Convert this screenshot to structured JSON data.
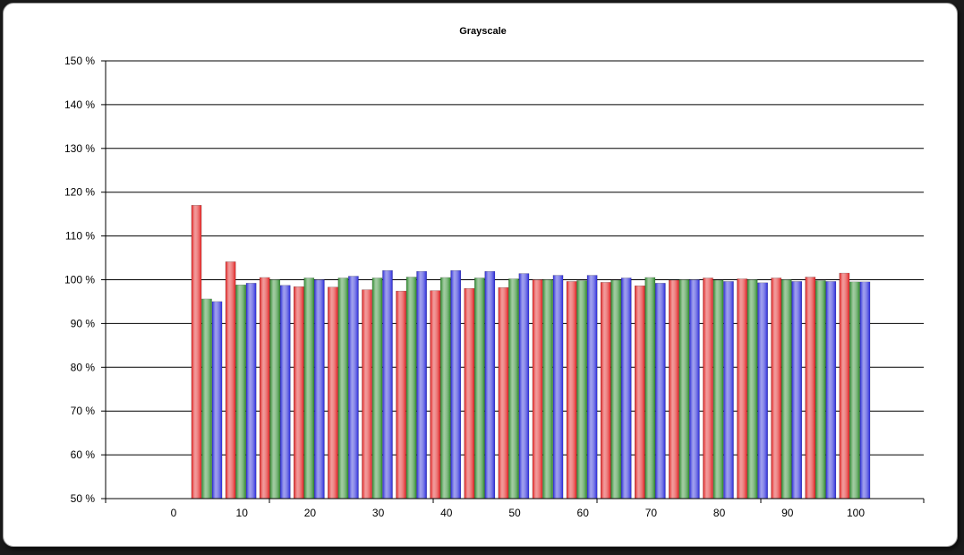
{
  "chart_data": {
    "type": "bar",
    "title": "Grayscale",
    "xlabel": "",
    "ylabel": "",
    "ylim": [
      50,
      150
    ],
    "y_ticks": [
      "50 %",
      "60 %",
      "70 %",
      "80 %",
      "90 %",
      "100 %",
      "110 %",
      "120 %",
      "130 %",
      "140 %",
      "150 %"
    ],
    "y_tick_values": [
      50,
      60,
      70,
      80,
      90,
      100,
      110,
      120,
      130,
      140,
      150
    ],
    "x_tick_labels": [
      "0",
      "10",
      "20",
      "30",
      "40",
      "50",
      "60",
      "70",
      "80",
      "90",
      "100"
    ],
    "grid": true,
    "legend": "none",
    "categories": [
      "0",
      "5",
      "10",
      "15",
      "20",
      "25",
      "30",
      "35",
      "40",
      "45",
      "50",
      "55",
      "60",
      "65",
      "70",
      "75",
      "80",
      "85",
      "90",
      "95",
      "100"
    ],
    "series": [
      {
        "color": "#e02020",
        "values": [
          null,
          117.0,
          104.1,
          100.5,
          98.4,
          98.3,
          97.7,
          97.4,
          97.5,
          98.0,
          98.2,
          100.0,
          99.6,
          99.4,
          98.6,
          99.9,
          100.4,
          100.2,
          100.4,
          100.6,
          101.5
        ]
      },
      {
        "color": "#2e8b2e",
        "values": [
          null,
          95.6,
          98.8,
          100.0,
          100.4,
          100.4,
          100.4,
          100.6,
          100.5,
          100.4,
          100.2,
          100.0,
          99.8,
          99.9,
          100.5,
          100.0,
          99.9,
          100.0,
          100.0,
          99.8,
          99.5
        ]
      },
      {
        "color": "#2828d8",
        "values": [
          null,
          95.0,
          99.2,
          98.7,
          100.0,
          100.8,
          102.1,
          101.9,
          102.1,
          101.9,
          101.4,
          101.0,
          101.0,
          100.4,
          99.2,
          100.0,
          99.6,
          99.3,
          99.6,
          99.6,
          99.5
        ]
      }
    ]
  }
}
